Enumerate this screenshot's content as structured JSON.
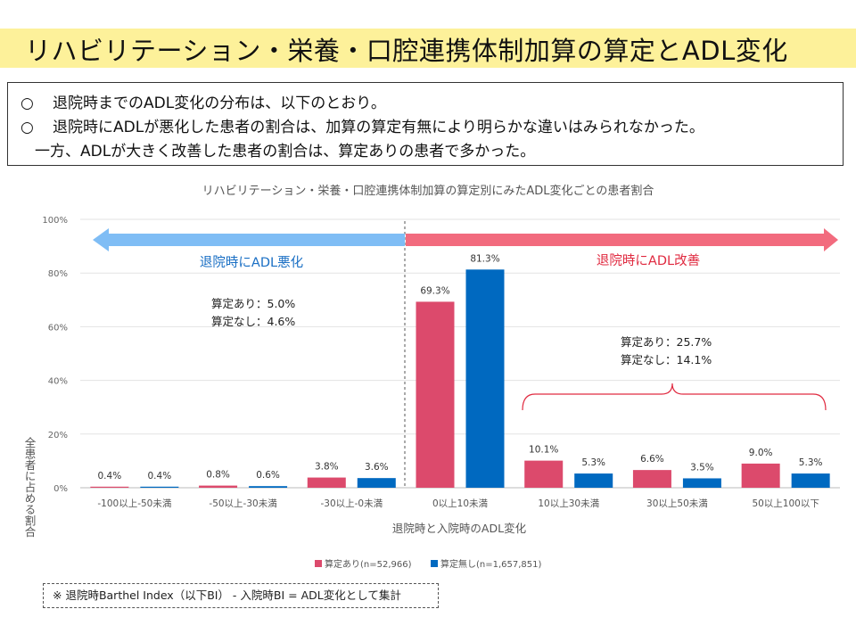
{
  "page_title": "リハビリテーション・栄養・口腔連携体制加算の算定とADL変化",
  "summary": {
    "bullet": "○",
    "line1": "退院時までのADL変化の分布は、以下のとおり。",
    "line2": "退院時にADLが悪化した患者の割合は、加算の算定有無により明らかな違いはみられなかった。",
    "line3": "一方、ADLが大きく改善した患者の割合は、算定ありの患者で多かった。"
  },
  "chart_data": {
    "type": "bar",
    "title": "リハビリテーション・栄養・口腔連携体制加算の算定別にみたADL変化ごとの患者割合",
    "xlabel": "退院時と入院時のADL変化",
    "ylabel": "全患者に占める割合",
    "ylim": [
      0,
      100
    ],
    "yticks": [
      "0%",
      "20%",
      "40%",
      "60%",
      "80%",
      "100%"
    ],
    "categories": [
      "-100以上-50未満",
      "-50以上-30未満",
      "-30以上-0未満",
      "0以上10未満",
      "10以上30未満",
      "30以上50未満",
      "50以上100以下"
    ],
    "series": [
      {
        "name": "算定あり(n=52,966)",
        "color": "#dc4a6c",
        "values": [
          0.4,
          0.8,
          3.8,
          69.3,
          10.1,
          6.6,
          9.0
        ],
        "labels": [
          "0.4%",
          "0.8%",
          "3.8%",
          "69.3%",
          "10.1%",
          "6.6%",
          "9.0%"
        ]
      },
      {
        "name": "算定無し(n=1,657,851)",
        "color": "#0069c0",
        "values": [
          0.4,
          0.6,
          3.6,
          81.3,
          5.3,
          3.5,
          5.3
        ],
        "labels": [
          "0.4%",
          "0.6%",
          "3.6%",
          "81.3%",
          "5.3%",
          "3.5%",
          "5.3%"
        ]
      }
    ],
    "grid": true,
    "legend_position": "bottom",
    "annotations": {
      "worse_arrow_label": "退院時にADL悪化",
      "better_arrow_label": "退院時にADL改善",
      "worse_note": [
        "算定あり：5.0%",
        "算定なし：4.6%"
      ],
      "better_note": [
        "算定あり：25.7%",
        "算定なし：14.1%"
      ],
      "worse_color": "#7fbdf5",
      "better_color": "#f26b7e",
      "worse_label_color": "#1a6fc4",
      "better_label_color": "#e02a40"
    }
  },
  "footnote": "※ 退院時Barthel Index（以下BI） - 入院時BI = ADL変化として集計"
}
